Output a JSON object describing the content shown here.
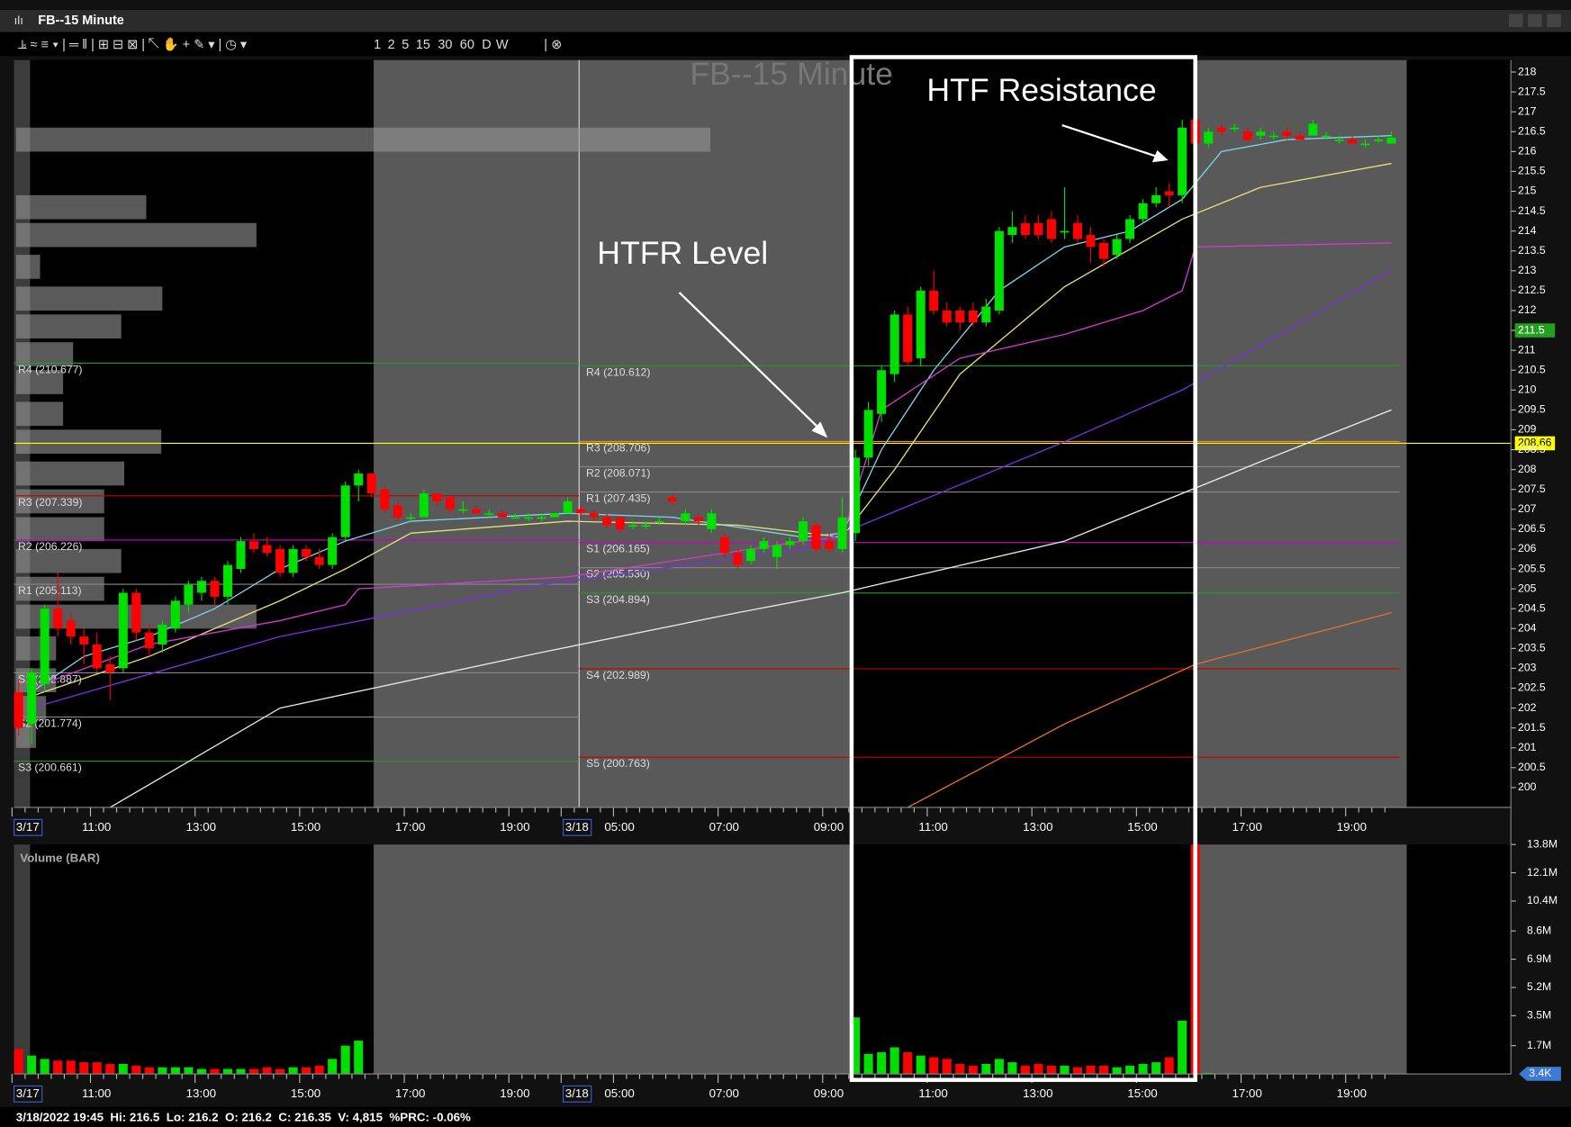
{
  "window_title": "FB--15 Minute",
  "toolbar_periods": [
    "1",
    "2",
    "5",
    "15",
    "30",
    "60",
    "D",
    "W"
  ],
  "status": "3/18/2022 19:45  Hi: 216.5  Lo: 216.2  O: 216.2  C: 216.35  V: 4,815  %PRC: -0.06%",
  "chart_data": {
    "type": "candlestick",
    "title": "FB--15 Minute",
    "volume_title": "Volume (BAR)",
    "annotations": [
      "HTF Resistance",
      "HTFR Level"
    ],
    "up_color": "#00e000",
    "down_color": "#ff0000",
    "categories": [
      "3/17",
      null,
      null,
      null,
      null,
      null,
      "11:00",
      null,
      null,
      null,
      null,
      null,
      null,
      null,
      "13:00",
      null,
      null,
      null,
      null,
      null,
      null,
      null,
      "15:00",
      null,
      null,
      null,
      null,
      null,
      null,
      null,
      "17:00",
      null,
      null,
      null,
      null,
      null,
      null,
      null,
      "19:00",
      null,
      null,
      null,
      "3/18",
      null,
      null,
      null,
      "05:00",
      null,
      null,
      null,
      null,
      null,
      null,
      null,
      "07:00",
      null,
      null,
      null,
      null,
      null,
      null,
      null,
      "09:00",
      null,
      null,
      null,
      null,
      null,
      null,
      null,
      "11:00",
      null,
      null,
      null,
      null,
      null,
      null,
      null,
      "13:00",
      null,
      null,
      null,
      null,
      null,
      null,
      null,
      "15:00",
      null,
      null,
      null,
      null,
      null,
      null,
      null,
      "17:00",
      null,
      null,
      null,
      null,
      null,
      null,
      null,
      "19:00",
      null,
      null,
      null
    ],
    "open": [
      202.4,
      201.6,
      202.6,
      204.5,
      204.2,
      203.8,
      203.6,
      203.1,
      203.0,
      204.9,
      203.9,
      203.6,
      204.0,
      204.6,
      204.9,
      205.2,
      204.8,
      205.5,
      206.2,
      206.1,
      206.0,
      205.4,
      206.0,
      205.8,
      205.6,
      206.3,
      207.6,
      207.9,
      207.5,
      207.1,
      206.8,
      206.8,
      207.4,
      207.3,
      207.0,
      207.0,
      206.9,
      206.9,
      206.8,
      206.8,
      206.8,
      206.8,
      206.9,
      207.0,
      206.9,
      206.8,
      206.8,
      206.6,
      206.6,
      206.7,
      207.3,
      206.7,
      206.8,
      206.5,
      206.3,
      205.9,
      205.7,
      206.0,
      205.8,
      206.1,
      206.2,
      206.6,
      206.2,
      206.0,
      206.4,
      208.3,
      209.4,
      210.4,
      211.9,
      210.8,
      212.5,
      212.0,
      212.0,
      212.0,
      211.7,
      212.0,
      213.9,
      214.2,
      214.2,
      214.3,
      214.0,
      214.2,
      213.9,
      213.7,
      213.4,
      213.8,
      214.3,
      214.7,
      215.0,
      214.9,
      216.8,
      216.2,
      216.6,
      216.6,
      216.5,
      216.4,
      216.4,
      216.5,
      216.4,
      216.4,
      216.4,
      216.3,
      216.3,
      216.2,
      216.3,
      216.2
    ],
    "high": [
      202.7,
      203.0,
      204.6,
      205.4,
      204.4,
      204.0,
      203.9,
      203.3,
      205.0,
      205.0,
      204.1,
      204.2,
      204.8,
      205.2,
      205.3,
      205.3,
      205.7,
      206.3,
      206.4,
      206.3,
      206.1,
      206.1,
      206.1,
      206.0,
      206.4,
      207.7,
      208.0,
      207.9,
      207.6,
      207.2,
      206.9,
      207.5,
      207.4,
      207.3,
      207.2,
      207.1,
      207.0,
      207.0,
      206.9,
      206.9,
      206.9,
      206.9,
      207.3,
      207.1,
      207.0,
      206.9,
      206.8,
      206.7,
      206.7,
      206.8,
      207.4,
      207.0,
      206.9,
      207.0,
      206.4,
      206.0,
      206.1,
      206.3,
      206.2,
      206.3,
      206.8,
      206.7,
      206.4,
      207.3,
      208.5,
      209.7,
      210.6,
      212.0,
      212.1,
      212.6,
      213.0,
      212.2,
      212.1,
      212.2,
      212.3,
      214.1,
      214.5,
      214.4,
      214.4,
      214.5,
      215.1,
      214.4,
      214.1,
      213.8,
      213.9,
      214.4,
      214.8,
      215.1,
      215.2,
      216.8,
      216.9,
      216.6,
      216.7,
      216.7,
      216.6,
      216.6,
      216.5,
      216.6,
      216.5,
      216.8,
      216.5,
      216.4,
      216.4,
      216.3,
      216.4,
      216.5
    ],
    "low": [
      201.3,
      201.1,
      202.4,
      203.8,
      203.6,
      203.1,
      202.9,
      202.2,
      202.9,
      203.7,
      203.3,
      203.4,
      203.9,
      204.4,
      204.7,
      204.6,
      204.6,
      205.4,
      205.9,
      205.8,
      205.3,
      205.3,
      205.7,
      205.5,
      205.5,
      206.2,
      207.2,
      207.3,
      206.9,
      206.7,
      206.7,
      206.8,
      207.1,
      206.9,
      206.9,
      206.9,
      206.8,
      206.8,
      206.8,
      206.7,
      206.7,
      206.8,
      206.9,
      206.8,
      206.7,
      206.5,
      206.4,
      206.5,
      206.5,
      206.6,
      207.1,
      206.6,
      206.6,
      206.4,
      205.8,
      205.5,
      205.6,
      205.9,
      205.5,
      206.0,
      206.1,
      205.9,
      205.9,
      205.9,
      206.2,
      208.1,
      209.2,
      210.2,
      210.6,
      210.6,
      211.9,
      211.6,
      211.5,
      211.6,
      211.6,
      211.9,
      213.7,
      213.8,
      213.8,
      213.7,
      213.8,
      213.7,
      213.2,
      213.1,
      213.3,
      213.7,
      214.2,
      214.6,
      214.6,
      214.7,
      216.1,
      216.1,
      216.4,
      216.5,
      216.2,
      216.3,
      216.3,
      216.3,
      216.3,
      216.4,
      216.3,
      216.2,
      216.2,
      216.1,
      216.2,
      216.2
    ],
    "close": [
      201.5,
      202.9,
      204.5,
      204.0,
      203.8,
      203.6,
      203.0,
      202.9,
      204.9,
      203.9,
      203.5,
      204.1,
      204.7,
      205.1,
      205.2,
      204.8,
      205.6,
      206.2,
      206.0,
      205.9,
      205.4,
      206.0,
      205.8,
      205.6,
      206.3,
      207.6,
      207.9,
      207.4,
      207.0,
      206.8,
      206.8,
      207.4,
      207.2,
      207.0,
      207.0,
      206.9,
      206.9,
      206.8,
      206.8,
      206.8,
      206.8,
      206.9,
      207.2,
      206.9,
      206.8,
      206.6,
      206.5,
      206.6,
      206.6,
      206.7,
      207.2,
      206.9,
      206.7,
      206.9,
      205.9,
      205.6,
      206.0,
      206.2,
      206.1,
      206.2,
      206.7,
      206.0,
      206.0,
      206.8,
      208.3,
      209.5,
      210.5,
      211.9,
      210.7,
      212.5,
      212.0,
      211.7,
      211.7,
      211.7,
      212.1,
      214.0,
      214.1,
      213.9,
      213.9,
      213.8,
      214.0,
      213.8,
      213.6,
      213.3,
      213.8,
      214.3,
      214.7,
      214.9,
      214.9,
      216.6,
      216.2,
      216.5,
      216.5,
      216.6,
      216.3,
      216.5,
      216.4,
      216.4,
      216.3,
      216.7,
      216.4,
      216.3,
      216.2,
      216.2,
      216.3,
      216.35
    ],
    "volume": [
      1500000,
      1100000,
      900000,
      800000,
      800000,
      700000,
      700000,
      600000,
      600000,
      500000,
      400000,
      400000,
      400000,
      400000,
      300000,
      300000,
      300000,
      300000,
      300000,
      400000,
      300000,
      400000,
      400000,
      500000,
      900000,
      1700000,
      2000000,
      40000,
      30000,
      30000,
      20000,
      20000,
      20000,
      10000,
      10000,
      10000,
      10000,
      10000,
      10000,
      10000,
      10000,
      10000,
      10000,
      10000,
      10000,
      10000,
      10000,
      10000,
      10000,
      10000,
      10000,
      10000,
      10000,
      10000,
      20000,
      20000,
      20000,
      20000,
      20000,
      20000,
      30000,
      30000,
      30000,
      40000,
      3400000,
      1200000,
      1300000,
      1600000,
      1300000,
      1100000,
      1000000,
      900000,
      600000,
      500000,
      600000,
      900000,
      700000,
      500000,
      600000,
      500000,
      500000,
      400000,
      500000,
      500000,
      400000,
      500000,
      600000,
      700000,
      1000000,
      3200000,
      14500000,
      60000,
      30000,
      20000,
      20000,
      10000,
      10000,
      10000,
      10000,
      10000,
      10000,
      10000,
      10000,
      10000,
      10000,
      4815
    ],
    "indicators": [
      {
        "color": "#7fd3e6",
        "x": [
          1,
          5,
          10,
          15,
          20,
          25,
          30,
          42,
          50,
          60,
          63,
          66,
          70,
          75,
          80,
          85,
          89,
          92,
          97,
          105
        ],
        "values": [
          202.4,
          203.3,
          203.8,
          204.5,
          205.5,
          206.2,
          206.7,
          206.9,
          206.8,
          206.3,
          206.4,
          208.5,
          210.5,
          212.5,
          213.6,
          214.0,
          214.8,
          216.0,
          216.3,
          216.4
        ]
      },
      {
        "color": "#e6e07a",
        "x": [
          1,
          10,
          20,
          25,
          30,
          42,
          55,
          63,
          67,
          72,
          80,
          89,
          95,
          105
        ],
        "values": [
          202.3,
          203.3,
          204.7,
          205.5,
          206.4,
          206.7,
          206.6,
          206.3,
          208.0,
          210.4,
          212.6,
          214.3,
          215.1,
          215.7
        ]
      },
      {
        "color": "#d23ad2",
        "x": [
          1,
          10,
          20,
          25,
          26,
          42,
          60,
          63,
          66,
          72,
          80,
          86,
          89,
          90,
          105
        ],
        "values": [
          202.5,
          203.6,
          204.2,
          204.6,
          205.0,
          205.3,
          206.2,
          206.3,
          209.5,
          210.8,
          211.4,
          212.0,
          212.5,
          213.6,
          213.7
        ]
      },
      {
        "color": "#7a2fe0",
        "x": [
          1,
          20,
          40,
          60,
          63,
          80,
          89,
          105
        ],
        "values": [
          202.0,
          203.8,
          205.1,
          206.0,
          206.4,
          208.7,
          210.0,
          213.0
        ]
      },
      {
        "color": "#e8e8e8",
        "x": [
          7,
          20,
          40,
          55,
          63,
          80,
          95,
          105
        ],
        "values": [
          199.5,
          202.0,
          203.4,
          204.4,
          204.9,
          206.2,
          208.2,
          209.5
        ]
      },
      {
        "color": "#e0702a",
        "x": [
          68,
          80,
          90,
          105
        ],
        "values": [
          199.5,
          201.6,
          203.1,
          204.4
        ]
      }
    ],
    "volume_profile": {
      "prices": [
        216.3,
        214.6,
        213.9,
        213.1,
        212.3,
        211.6,
        210.9,
        210.2,
        209.4,
        208.7,
        207.9,
        207.2,
        206.5,
        205.7,
        205.0,
        204.3,
        203.5,
        202.7,
        202.0,
        201.3
      ],
      "values": [
        693,
        130,
        240,
        24,
        146,
        105,
        57,
        47,
        47,
        145,
        108,
        88,
        88,
        105,
        88,
        240,
        40,
        40,
        30,
        20
      ]
    },
    "pivot_levels": [
      {
        "levels": [
          {
            "value": 210.677,
            "label": "R4  (210.677)",
            "color": "#1fa01f"
          },
          {
            "value": 207.339,
            "label": "R3  (207.339)",
            "color": "#c00000"
          },
          {
            "value": 206.226,
            "label": "R2  (206.226)",
            "color": "#cc00cc"
          },
          {
            "value": 205.113,
            "label": "R1  (205.113)",
            "color": "#888888"
          },
          {
            "value": 202.887,
            "label": "S1  (202.887)",
            "color": "#888888"
          },
          {
            "value": 201.774,
            "label": "S2  (201.774)",
            "color": "#888888"
          },
          {
            "value": 200.661,
            "label": "S3  (200.661)",
            "color": "#1fa01f"
          }
        ]
      },
      {
        "levels": [
          {
            "value": 210.612,
            "label": "R4  (210.612)",
            "color": "#1fa01f"
          },
          {
            "value": 208.706,
            "label": "R3  (208.706)",
            "color": "#ff8c00"
          },
          {
            "value": 208.071,
            "label": "R2  (208.071)",
            "color": "#888888"
          },
          {
            "value": 207.435,
            "label": "R1  (207.435)",
            "color": "#888888"
          },
          {
            "value": 206.165,
            "label": "S1  (206.165)",
            "color": "#cc00cc"
          },
          {
            "value": 205.53,
            "label": "S2  (205.530)",
            "color": "#888888"
          },
          {
            "value": 204.894,
            "label": "S3  (204.894)",
            "color": "#1fa01f"
          },
          {
            "value": 202.989,
            "label": "S4  (202.989)",
            "color": "#c00000"
          },
          {
            "value": 200.763,
            "label": "S5  (200.763)",
            "color": "#c00000"
          }
        ]
      }
    ],
    "price_markers": [
      {
        "value": 211.5,
        "label": "211.5",
        "color": "#1fa01f",
        "show_line": false
      },
      {
        "value": 208.66,
        "label": "208.66",
        "color": "#ffff00",
        "show_line": true
      }
    ],
    "volume_marker": {
      "value": 3400,
      "label": "3.4K",
      "color": "#3a7bd5"
    },
    "ylim": [
      199.5,
      218.3
    ],
    "yticks": [
      200,
      200.5,
      201,
      201.5,
      202,
      202.5,
      203,
      203.5,
      204,
      204.5,
      205,
      205.5,
      206,
      206.5,
      207,
      207.5,
      208,
      208.5,
      209,
      209.5,
      210,
      210.5,
      211,
      211.5,
      212,
      212.5,
      213,
      213.5,
      214,
      214.5,
      215,
      215.5,
      216,
      216.5,
      217,
      217.5,
      218
    ],
    "volume_ylim": [
      0,
      13800000
    ],
    "volume_yticks": [
      {
        "value": 1700000,
        "label": "1.7M"
      },
      {
        "value": 3500000,
        "label": "3.5M"
      },
      {
        "value": 5200000,
        "label": "5.2M"
      },
      {
        "value": 6900000,
        "label": "6.9M"
      },
      {
        "value": 8600000,
        "label": "8.6M"
      },
      {
        "value": 10400000,
        "label": "10.4M"
      },
      {
        "value": 12100000,
        "label": "12.1M"
      },
      {
        "value": 13800000,
        "label": "13.8M"
      }
    ]
  }
}
